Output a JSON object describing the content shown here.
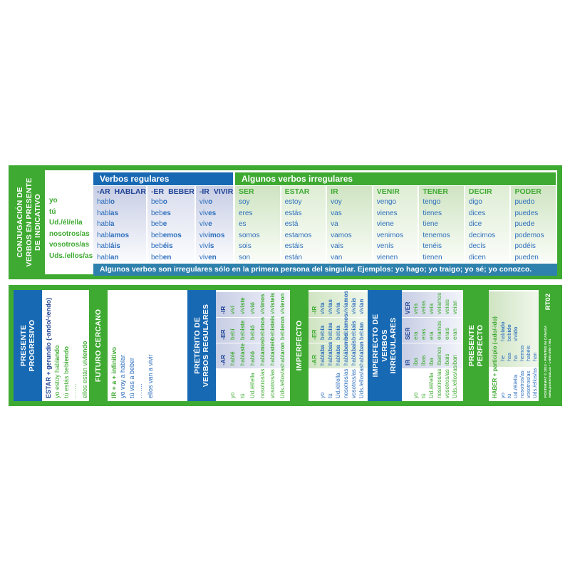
{
  "colors": {
    "green": "#3faa32",
    "blue_bar": "#1769b3",
    "navy_text": "#1e4396",
    "blue_text": "#2e6fbd",
    "teal_note": "#2e81ad",
    "lavender_tint": "#c7cde4",
    "green_tint": "#cfe4c2"
  },
  "front": {
    "title_lines": [
      "CONJUGACIÓN DE",
      "VERBOS EN PRESENTE",
      "DE INDICATIVO"
    ],
    "pronouns": [
      "yo",
      "tú",
      "Ud./él/ella",
      "nosotros/as",
      "vosotros/as",
      "Uds./ellos/as"
    ],
    "regular_header": "Verbos regulares",
    "irregular_header": "Algunos verbos irregulares",
    "regular_verbs": [
      {
        "ending": "-AR",
        "infinitive": "HABLAR",
        "forms": [
          "habl|o",
          "habl|as",
          "habl|a",
          "habl|amos",
          "habl|áis",
          "habl|an"
        ]
      },
      {
        "ending": "-ER",
        "infinitive": "BEBER",
        "forms": [
          "beb|o",
          "beb|es",
          "beb|e",
          "beb|emos",
          "beb|éis",
          "beb|en"
        ]
      },
      {
        "ending": "-IR",
        "infinitive": "VIVIR",
        "forms": [
          "viv|o",
          "viv|es",
          "viv|e",
          "viv|imos",
          "viv|ís",
          "viv|en"
        ]
      }
    ],
    "irregular_verbs": [
      {
        "name": "SER",
        "forms": [
          "soy",
          "eres",
          "es",
          "somos",
          "sois",
          "son"
        ]
      },
      {
        "name": "ESTAR",
        "forms": [
          "estoy",
          "estás",
          "está",
          "estamos",
          "estáis",
          "están"
        ]
      },
      {
        "name": "IR",
        "forms": [
          "voy",
          "vas",
          "va",
          "vamos",
          "vais",
          "van"
        ]
      },
      {
        "name": "VENIR",
        "forms": [
          "vengo",
          "vienes",
          "viene",
          "venimos",
          "venís",
          "vienen"
        ]
      },
      {
        "name": "TENER",
        "forms": [
          "tengo",
          "tienes",
          "tiene",
          "tenemos",
          "tenéis",
          "tienen"
        ]
      },
      {
        "name": "DECIR",
        "forms": [
          "digo",
          "dices",
          "dice",
          "decimos",
          "decís",
          "dicen"
        ]
      },
      {
        "name": "PODER",
        "forms": [
          "puedo",
          "puedes",
          "puede",
          "podemos",
          "podéis",
          "pueden"
        ]
      }
    ],
    "note": "Algunos verbos son irregulares sólo en la primera persona del singular. Ejemplos: yo hago; yo traigo; yo sé; yo conozco."
  },
  "back": {
    "sections": [
      {
        "title_lines": [
          "PRESENTE",
          "PROGRESIVO"
        ],
        "bar_color": "blue",
        "formula": "ESTAR + gerundio (-ando/-iendo)",
        "formula_color": "blue",
        "examples": [
          "yo estoy habl|ando",
          "tú estás beb|iendo",
          "·······",
          "ellos están viv|iendo"
        ],
        "examples_color": "green"
      },
      {
        "title_lines": [
          "FUTURO CERCANO"
        ],
        "bar_color": "green",
        "formula": "IR + a + infinitivo",
        "formula_color": "green",
        "examples": [
          "yo voy a hablar",
          "tú vas a beber",
          "·······",
          "ellos van a vivir"
        ],
        "examples_color": "blue"
      },
      {
        "title_lines": [
          "PRETÉRITO DE",
          "VERBOS REGULARES"
        ],
        "bar_color": "blue",
        "cols": [
          "-AR",
          "-ER",
          "-IR"
        ],
        "col_header_color": "blue",
        "rows": [
          [
            "yo",
            "habl|é",
            "beb|í",
            "viv|í"
          ],
          [
            "tú",
            "habl|aste",
            "beb|iste",
            "viv|iste"
          ],
          [
            "Ud./él/ella",
            "habl|ó",
            "beb|ió",
            "viv|ió"
          ],
          [
            "nosotros/as",
            "habl|amos",
            "beb|imos",
            "viv|imos"
          ],
          [
            "vosotros/as",
            "habl|asteis",
            "beb|isteis",
            "viv|isteis"
          ],
          [
            "Uds./ellos/as",
            "habl|aron",
            "beb|ieron",
            "viv|ieron"
          ]
        ],
        "text_color": "green",
        "tint": "lavender"
      },
      {
        "title_lines": [
          "IMPERFECTO"
        ],
        "bar_color": "green",
        "cols": [
          "-AR",
          "-ER",
          "-IR"
        ],
        "col_header_color": "green",
        "rows": [
          [
            "yo",
            "habl|aba",
            "beb|ía",
            "viv|ía"
          ],
          [
            "tú",
            "habl|abas",
            "beb|ías",
            "viv|ías"
          ],
          [
            "Ud./él/ella",
            "habl|aba",
            "beb|ía",
            "viv|ía"
          ],
          [
            "nosotros/as",
            "habl|ábamos",
            "beb|íamos",
            "viv|íamos"
          ],
          [
            "vosotros/as",
            "habl|abais",
            "beb|íais",
            "viv|íais"
          ],
          [
            "Uds./ellos/as",
            "habl|aban",
            "beb|ían",
            "viv|ían"
          ]
        ],
        "text_color": "blue",
        "tint": "green"
      },
      {
        "title_lines": [
          "IMPERFECTO DE",
          "VERBOS",
          "IRREGULARES"
        ],
        "bar_color": "blue",
        "cols": [
          "IR",
          "SER",
          "VER"
        ],
        "col_header_color": "blue",
        "rows": [
          [
            "yo",
            "iba",
            "era",
            "veía"
          ],
          [
            "tú",
            "ibas",
            "eras",
            "veías"
          ],
          [
            "Ud./él/ella",
            "iba",
            "era",
            "veía"
          ],
          [
            "nosotros/as",
            "íbamos",
            "éramos",
            "veíamos"
          ],
          [
            "vosotros/as",
            "ibais",
            "erais",
            "veíais"
          ],
          [
            "Uds./ellos/as",
            "iban",
            "eran",
            "veían"
          ]
        ],
        "text_color": "green",
        "tint": "lavender"
      },
      {
        "title_lines": [
          "PRESENTE",
          "PERFECTO"
        ],
        "bar_color": "green",
        "formula": "HABER + participio (-ado/-ido)",
        "formula_color": "green",
        "rows": [
          [
            "yo",
            "he",
            "habl|ado"
          ],
          [
            "tú",
            "has",
            "beb|ido"
          ],
          [
            "Ud./él/ella",
            "ha",
            "viv|ido"
          ],
          [
            "nosotros/as",
            "hemos",
            ""
          ],
          [
            "vosotros/as",
            "habéis",
            ""
          ],
          [
            "Uds./ellos/as",
            "han",
            ""
          ]
        ],
        "text_color": "blue",
        "tint": "green"
      }
    ],
    "footer": {
      "code": "RT02",
      "publisher_line1": "POSTERMAT © 2013 • PRINTED IN CANADA",
      "publisher_line2": "www.postermat.ca • 1-800-260-7764"
    }
  }
}
